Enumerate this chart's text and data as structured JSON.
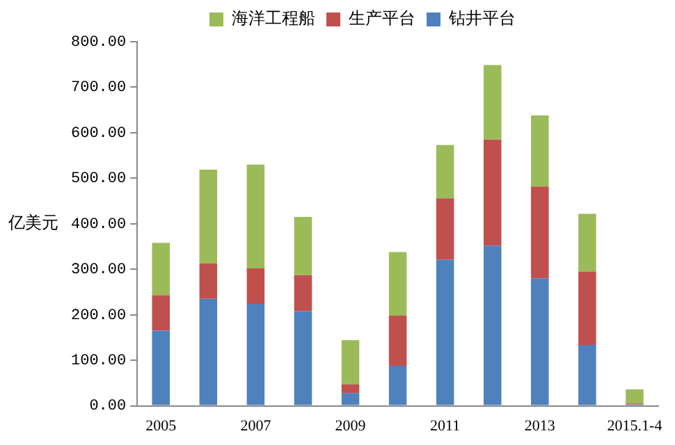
{
  "chart_data": {
    "type": "bar",
    "stacked": true,
    "ylabel": "亿美元",
    "legend": "top",
    "grid": false,
    "categories": [
      "2005",
      null,
      "2007",
      null,
      "2009",
      null,
      "2011",
      null,
      "2013",
      null,
      "2015.1-4"
    ],
    "series": [
      {
        "name": "钻井平台",
        "color": "#4f81bd",
        "values": [
          165,
          235,
          224,
          208,
          28,
          88,
          321,
          352,
          280,
          134,
          3
        ]
      },
      {
        "name": "生产平台",
        "color": "#c0504d",
        "values": [
          78,
          78,
          78,
          79,
          19,
          110,
          135,
          233,
          202,
          161,
          2
        ]
      },
      {
        "name": "海洋工程船",
        "color": "#9bbb59",
        "values": [
          115,
          206,
          228,
          128,
          97,
          140,
          117,
          164,
          156,
          127,
          31
        ]
      }
    ],
    "ylim": [
      0,
      800
    ],
    "yticks": [
      {
        "value": 0,
        "label": "0.00"
      },
      {
        "value": 100,
        "label": "100.00"
      },
      {
        "value": 200,
        "label": "200.00"
      },
      {
        "value": 300,
        "label": "300.00"
      },
      {
        "value": 400,
        "label": "400.00"
      },
      {
        "value": 500,
        "label": "500.00"
      },
      {
        "value": 600,
        "label": "600.00"
      },
      {
        "value": 700,
        "label": "700.00"
      },
      {
        "value": 800,
        "label": "800.00"
      }
    ]
  }
}
